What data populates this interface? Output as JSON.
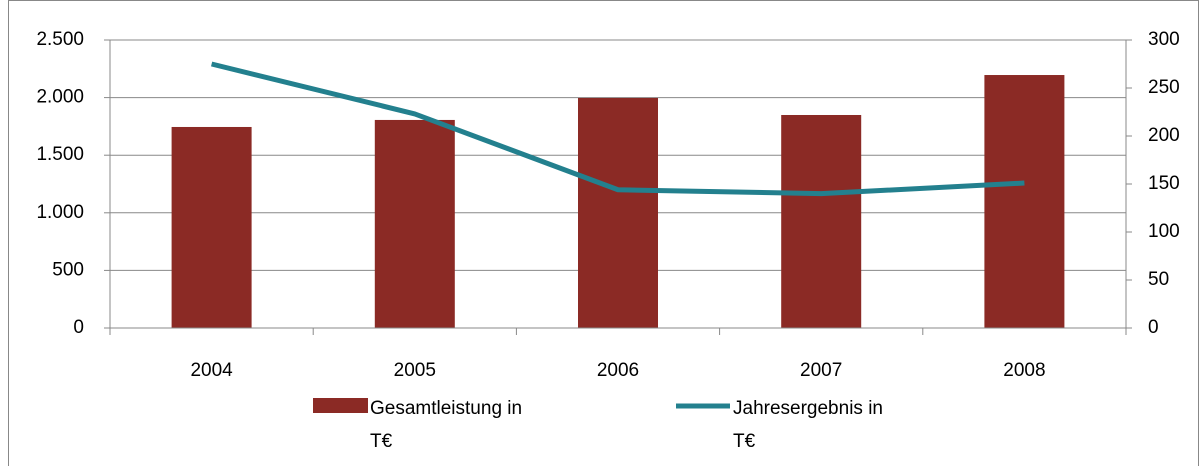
{
  "chart_data": {
    "type": "bar_line",
    "categories": [
      "2004",
      "2005",
      "2006",
      "2007",
      "2008"
    ],
    "series": [
      {
        "name": "Gesamtleistung in T€",
        "color": "#8b2a25",
        "type": "bar",
        "values": [
          1745,
          1806,
          1997,
          1849,
          2196
        ]
      },
      {
        "name": "Jahresergebnis in T€",
        "color": "#23808e",
        "type": "line",
        "axis": "y2",
        "values": [
          275,
          223,
          144,
          140,
          151
        ]
      }
    ],
    "ylim": [
      0,
      2500
    ],
    "yticks": [
      0,
      500,
      {
        "value": 1000,
        "label": "1.000"
      },
      {
        "value": 1500,
        "label": "1.500"
      },
      {
        "value": 2000,
        "label": "2.000"
      },
      {
        "value": 2500,
        "label": "2.500"
      }
    ],
    "y2lim": [
      0,
      300
    ],
    "y2ticks": [
      0,
      50,
      100,
      150,
      200,
      250,
      300
    ],
    "grid": true,
    "legend": "bottom"
  }
}
